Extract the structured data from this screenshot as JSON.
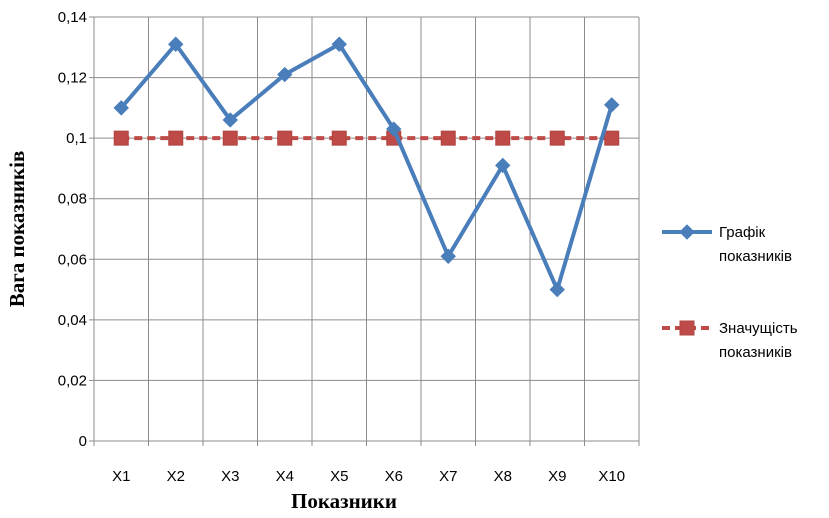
{
  "chart_data": {
    "type": "line",
    "xlabel": "Показники",
    "ylabel": "Вага показників",
    "categories": [
      "X1",
      "X2",
      "X3",
      "X4",
      "X5",
      "X6",
      "X7",
      "X8",
      "X9",
      "X10"
    ],
    "ylim": [
      0,
      0.14
    ],
    "yticks": [
      "0",
      "0,02",
      "0,04",
      "0,06",
      "0,08",
      "0,1",
      "0,12",
      "0,14"
    ],
    "grid": true,
    "legend_position": "right",
    "series": [
      {
        "name_lines": [
          "Графік",
          "показників"
        ],
        "color": "#4a7ebb",
        "marker": "diamond",
        "dash": "solid",
        "values": [
          0.11,
          0.131,
          0.106,
          0.121,
          0.131,
          0.103,
          0.061,
          0.091,
          0.05,
          0.111
        ]
      },
      {
        "name_lines": [
          "Значущість",
          "показників"
        ],
        "color": "#be4b48",
        "marker": "square",
        "dash": "dashed",
        "values": [
          0.1,
          0.1,
          0.1,
          0.1,
          0.1,
          0.1,
          0.1,
          0.1,
          0.1,
          0.1
        ]
      }
    ]
  }
}
